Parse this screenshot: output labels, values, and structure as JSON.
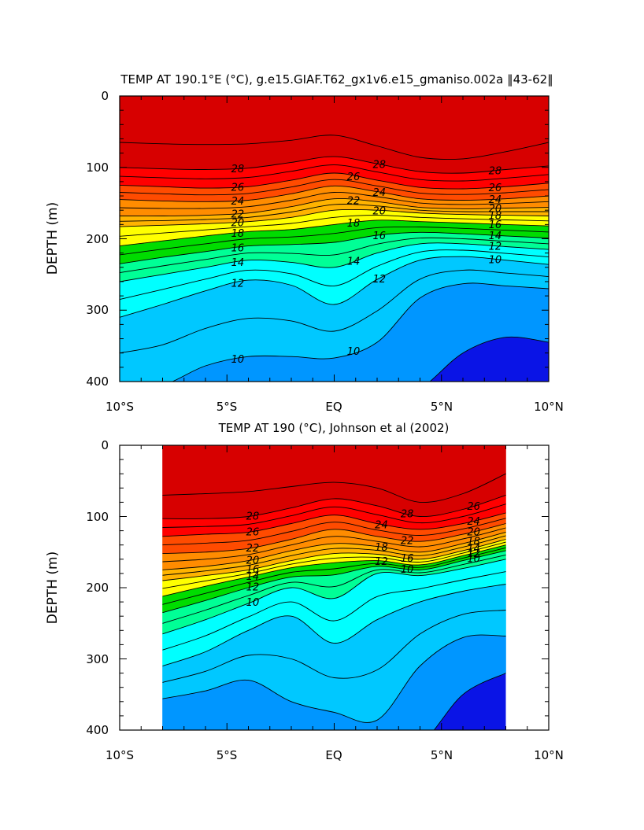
{
  "chart_data": [
    {
      "type": "heatmap",
      "title": "TEMP AT 190.1°E (°C), g.e15.GIAF.T62_gx1v6.e15_gmaniso.002a ‖43-62‖",
      "xlabel": "",
      "ylabel": "DEPTH (m)",
      "xlim": [
        -10,
        10
      ],
      "ylim": [
        400,
        0
      ],
      "x_ticks": [
        "10°S",
        "5°S",
        "EQ",
        "5°N",
        "10°N"
      ],
      "y_ticks": [
        "0",
        "100",
        "200",
        "300",
        "400"
      ],
      "contour_interval": 1,
      "contour_labels": [
        "28",
        "28",
        "28",
        "26",
        "26",
        "26",
        "24",
        "24",
        "24",
        "22",
        "22",
        "20",
        "20",
        "20",
        "18",
        "18",
        "18",
        "16",
        "16",
        "16",
        "14",
        "14",
        "14",
        "12",
        "12",
        "12",
        "10",
        "10",
        "10"
      ],
      "isotherm_depths_m": {
        "x": [
          -10,
          -8,
          -6,
          -4,
          -2,
          0,
          2,
          4,
          6,
          8,
          10
        ],
        "levels": {
          "29": [
            65,
            67,
            68,
            67,
            62,
            55,
            70,
            86,
            88,
            78,
            65
          ],
          "28": [
            100,
            102,
            103,
            101,
            93,
            85,
            95,
            106,
            108,
            103,
            98
          ],
          "26": [
            125,
            127,
            129,
            127,
            118,
            108,
            118,
            128,
            130,
            127,
            122
          ],
          "24": [
            145,
            147,
            148,
            146,
            137,
            126,
            134,
            144,
            146,
            144,
            140
          ],
          "22": [
            168,
            168,
            167,
            164,
            155,
            144,
            148,
            156,
            158,
            157,
            156
          ],
          "20": [
            183,
            181,
            179,
            176,
            170,
            160,
            160,
            164,
            166,
            167,
            168
          ],
          "18": [
            210,
            203,
            196,
            190,
            187,
            180,
            174,
            176,
            178,
            180,
            182
          ],
          "16": [
            235,
            226,
            218,
            210,
            208,
            205,
            195,
            191,
            193,
            196,
            199
          ],
          "14": [
            260,
            250,
            240,
            230,
            233,
            240,
            220,
            207,
            207,
            211,
            215
          ],
          "12": [
            310,
            292,
            273,
            258,
            265,
            292,
            257,
            230,
            225,
            230,
            236
          ],
          "10": [
            410,
            405,
            378,
            365,
            365,
            367,
            345,
            283,
            263,
            266,
            270
          ],
          "9": [
            430,
            430,
            430,
            430,
            430,
            430,
            430,
            410,
            360,
            338,
            345
          ]
        }
      }
    },
    {
      "type": "heatmap",
      "title": "TEMP AT 190 (°C), Johnson et al (2002)",
      "xlabel": "",
      "ylabel": "DEPTH (m)",
      "xlim": [
        -10,
        10
      ],
      "ylim": [
        400,
        0
      ],
      "data_x_range": [
        -8,
        8
      ],
      "x_ticks": [
        "10°S",
        "5°S",
        "EQ",
        "5°N",
        "10°N"
      ],
      "y_ticks": [
        "0",
        "100",
        "200",
        "300",
        "400"
      ],
      "contour_interval": 1,
      "contour_labels": [
        "28",
        "28",
        "26",
        "26",
        "24",
        "24",
        "22",
        "22",
        "20",
        "20",
        "18",
        "18",
        "16",
        "16",
        "14",
        "14",
        "12",
        "12",
        "12",
        "10",
        "10",
        "10"
      ],
      "isotherm_depths_m": {
        "x": [
          -8,
          -6,
          -4,
          -2,
          0,
          2,
          4,
          6,
          8
        ],
        "levels": {
          "29": [
            70,
            68,
            65,
            58,
            52,
            60,
            80,
            68,
            40
          ],
          "28": [
            103,
            103,
            100,
            88,
            75,
            85,
            100,
            90,
            70
          ],
          "26": [
            128,
            125,
            122,
            110,
            98,
            110,
            118,
            110,
            95
          ],
          "24": [
            152,
            150,
            145,
            132,
            118,
            128,
            135,
            125,
            110
          ],
          "22": [
            175,
            170,
            162,
            148,
            138,
            142,
            150,
            138,
            122
          ],
          "20": [
            190,
            183,
            175,
            162,
            152,
            153,
            160,
            148,
            132
          ],
          "18": [
            212,
            198,
            185,
            172,
            165,
            162,
            168,
            155,
            140
          ],
          "16": [
            235,
            218,
            200,
            185,
            182,
            170,
            175,
            162,
            148
          ],
          "14": [
            265,
            245,
            222,
            200,
            215,
            180,
            183,
            173,
            160
          ],
          "12": [
            310,
            290,
            260,
            240,
            278,
            245,
            220,
            205,
            195
          ],
          "10": [
            356,
            345,
            330,
            360,
            375,
            386,
            310,
            270,
            268
          ],
          "9": [
            430,
            430,
            430,
            430,
            430,
            430,
            420,
            350,
            320
          ]
        }
      }
    }
  ]
}
